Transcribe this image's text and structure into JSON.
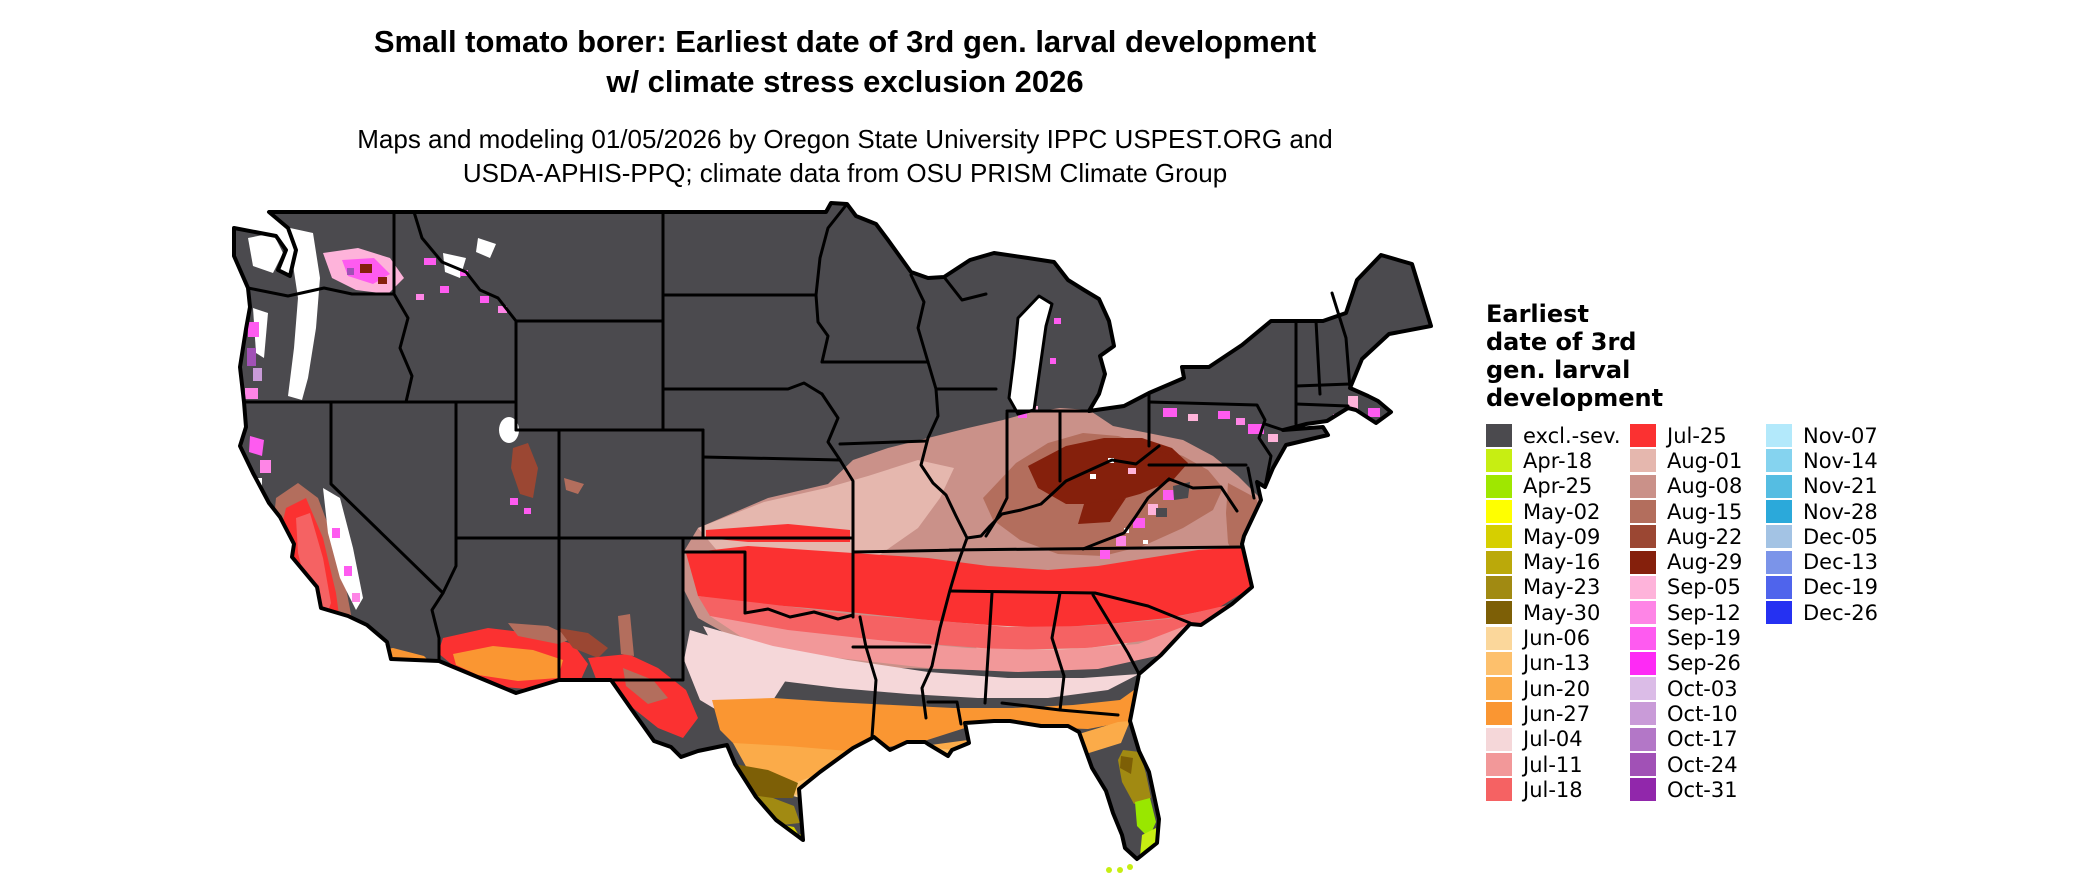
{
  "title": {
    "line1": "Small tomato borer: Earliest date of 3rd gen. larval development",
    "line2": "w/ climate stress exclusion 2026"
  },
  "subtitle": {
    "line1": "Maps and modeling 01/05/2026 by Oregon State University IPPC USPEST.ORG and",
    "line2": "USDA-APHIS-PPQ; climate data from OSU PRISM Climate Group"
  },
  "legend": {
    "title_lines": [
      "Earliest",
      "date of 3rd",
      "gen. larval",
      "development"
    ],
    "columns": [
      [
        {
          "label": "excl.-sev.",
          "color": "#4b4a4e"
        },
        {
          "label": "Apr-18",
          "color": "#c7ee12"
        },
        {
          "label": "Apr-25",
          "color": "#9fe700"
        },
        {
          "label": "May-02",
          "color": "#ffff00"
        },
        {
          "label": "May-09",
          "color": "#d6cf00"
        },
        {
          "label": "May-16",
          "color": "#bba90a"
        },
        {
          "label": "May-23",
          "color": "#a18a12"
        },
        {
          "label": "May-30",
          "color": "#7d5f06"
        },
        {
          "label": "Jun-06",
          "color": "#fbd79b"
        },
        {
          "label": "Jun-13",
          "color": "#fdc06c"
        },
        {
          "label": "Jun-20",
          "color": "#fbab49"
        },
        {
          "label": "Jun-27",
          "color": "#fa9632"
        },
        {
          "label": "Jul-04",
          "color": "#f5d7d9"
        },
        {
          "label": "Jul-11",
          "color": "#f29899"
        },
        {
          "label": "Jul-18",
          "color": "#f56263"
        }
      ],
      [
        {
          "label": "Jul-25",
          "color": "#fb3131"
        },
        {
          "label": "Aug-01",
          "color": "#e5b7ae"
        },
        {
          "label": "Aug-08",
          "color": "#ca9189"
        },
        {
          "label": "Aug-15",
          "color": "#b36e5d"
        },
        {
          "label": "Aug-22",
          "color": "#9b4733"
        },
        {
          "label": "Aug-29",
          "color": "#85200c"
        },
        {
          "label": "Sep-05",
          "color": "#feb3da"
        },
        {
          "label": "Sep-12",
          "color": "#fe85e6"
        },
        {
          "label": "Sep-19",
          "color": "#fe5bf0"
        },
        {
          "label": "Sep-26",
          "color": "#fe2af5"
        },
        {
          "label": "Oct-03",
          "color": "#dbbce7"
        },
        {
          "label": "Oct-10",
          "color": "#c99bd8"
        },
        {
          "label": "Oct-17",
          "color": "#b377c7"
        },
        {
          "label": "Oct-24",
          "color": "#a151b6"
        },
        {
          "label": "Oct-31",
          "color": "#9127ab"
        }
      ],
      [
        {
          "label": "Nov-07",
          "color": "#b3e9fb"
        },
        {
          "label": "Nov-14",
          "color": "#85d3ef"
        },
        {
          "label": "Nov-21",
          "color": "#55bde2"
        },
        {
          "label": "Nov-28",
          "color": "#2ba9da"
        },
        {
          "label": "Dec-05",
          "color": "#a3c3e4"
        },
        {
          "label": "Dec-13",
          "color": "#7b94e9"
        },
        {
          "label": "Dec-19",
          "color": "#4f64ec"
        },
        {
          "label": "Dec-26",
          "color": "#2531f2"
        }
      ]
    ]
  },
  "map": {
    "background": "#ffffff",
    "excluded_color": "#4b4a4e",
    "state_border_color": "#000000",
    "water_color": "#ffffff"
  }
}
